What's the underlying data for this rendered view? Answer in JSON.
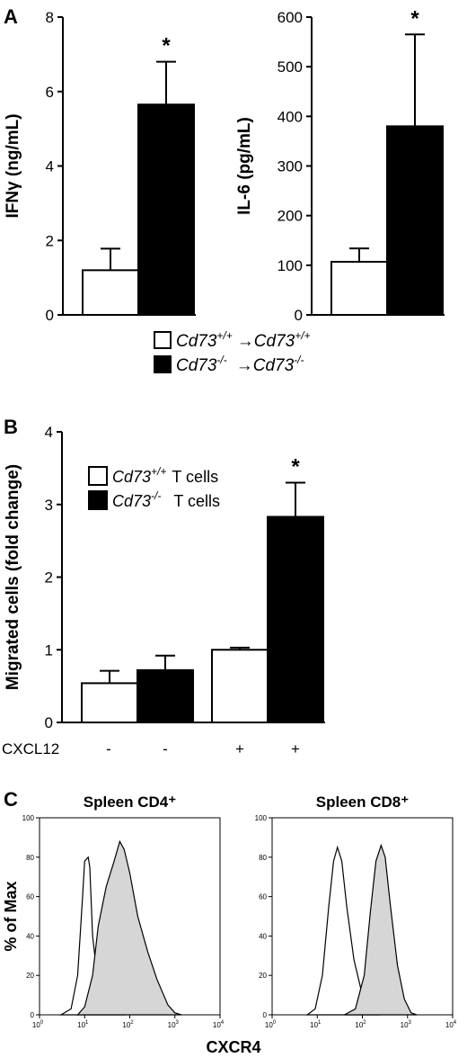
{
  "panels": {
    "A": "A",
    "B": "B",
    "C": "C"
  },
  "legend_a": {
    "entries": [
      {
        "main1": "Cd73",
        "sup1": "+/+",
        "arrow": "→",
        "main2": "Cd73",
        "sup2": "+/+",
        "fill": "#ffffff"
      },
      {
        "main1": "Cd73",
        "sup1": "-/-",
        "arrow": "→",
        "main2": "Cd73",
        "sup2": "-/-",
        "fill": "#000000"
      }
    ]
  },
  "legend_b": {
    "entries": [
      {
        "main": "Cd73",
        "sup": "+/+",
        "suffix": "T cells",
        "fill": "#ffffff"
      },
      {
        "main": "Cd73",
        "sup": "-/-",
        "suffix": "T cells",
        "fill": "#000000"
      }
    ]
  },
  "cxcl12": {
    "label": "CXCL12",
    "values": [
      "-",
      "-",
      "+",
      "+"
    ]
  },
  "chart_data": [
    {
      "type": "bar",
      "ylabel": "IFNγ (ng/mL)",
      "ylim": [
        0,
        8
      ],
      "yticks": [
        "0",
        "2",
        "4",
        "6",
        "8"
      ],
      "bars": [
        {
          "value": 1.2,
          "error": 0.58,
          "fill": "#ffffff"
        },
        {
          "value": 5.65,
          "error": 1.15,
          "fill": "#000000"
        }
      ],
      "annotation": "*"
    },
    {
      "type": "bar",
      "ylabel": "IL-6 (pg/mL)",
      "ylim": [
        0,
        600
      ],
      "yticks": [
        "0",
        "100",
        "200",
        "300",
        "400",
        "500",
        "600"
      ],
      "bars": [
        {
          "value": 107,
          "error": 27,
          "fill": "#ffffff"
        },
        {
          "value": 380,
          "error": 185,
          "fill": "#000000"
        }
      ],
      "annotation": "*"
    },
    {
      "type": "bar",
      "ylabel": "Migrated cells (fold change)",
      "ylim": [
        0,
        4
      ],
      "yticks": [
        "0",
        "1",
        "2",
        "3",
        "4"
      ],
      "bars": [
        {
          "value": 0.54,
          "error": 0.17,
          "fill": "#ffffff"
        },
        {
          "value": 0.72,
          "error": 0.2,
          "fill": "#000000"
        },
        {
          "value": 1.0,
          "error": 0.03,
          "fill": "#ffffff"
        },
        {
          "value": 2.83,
          "error": 0.47,
          "fill": "#000000"
        }
      ],
      "annotation": "*"
    },
    {
      "type": "area",
      "title": "Spleen CD4⁺",
      "ylabel": "% of Max",
      "xlabel": "CXCR4",
      "x_scale": "log",
      "xlim": [
        1,
        10000
      ],
      "ylim": [
        0,
        100
      ],
      "yticks": [
        "0",
        "20",
        "40",
        "60",
        "80",
        "100"
      ],
      "xticks": [
        {
          "base": "10",
          "exp": "0"
        },
        {
          "base": "10",
          "exp": "1"
        },
        {
          "base": "10",
          "exp": "2"
        },
        {
          "base": "10",
          "exp": "3"
        },
        {
          "base": "10",
          "exp": "4"
        }
      ],
      "series": [
        {
          "fill": "none",
          "points": [
            [
              3,
              0
            ],
            [
              5,
              3
            ],
            [
              7,
              20
            ],
            [
              9,
              60
            ],
            [
              10,
              78
            ],
            [
              12,
              80
            ],
            [
              13,
              75
            ],
            [
              15,
              40
            ],
            [
              20,
              15
            ],
            [
              28,
              5
            ],
            [
              40,
              1
            ],
            [
              80,
              0
            ]
          ]
        },
        {
          "fill": "#d6d6d6",
          "points": [
            [
              7,
              0
            ],
            [
              10,
              4
            ],
            [
              15,
              20
            ],
            [
              20,
              45
            ],
            [
              30,
              65
            ],
            [
              45,
              78
            ],
            [
              60,
              88
            ],
            [
              75,
              84
            ],
            [
              100,
              72
            ],
            [
              150,
              50
            ],
            [
              250,
              32
            ],
            [
              400,
              18
            ],
            [
              700,
              5
            ],
            [
              1000,
              1
            ],
            [
              1400,
              0
            ]
          ]
        }
      ]
    },
    {
      "type": "area",
      "title": "Spleen CD8⁺",
      "x_scale": "log",
      "xlim": [
        1,
        10000
      ],
      "ylim": [
        0,
        100
      ],
      "yticks": [
        "0",
        "20",
        "40",
        "60",
        "80",
        "100"
      ],
      "xticks": [
        {
          "base": "10",
          "exp": "0"
        },
        {
          "base": "10",
          "exp": "1"
        },
        {
          "base": "10",
          "exp": "2"
        },
        {
          "base": "10",
          "exp": "3"
        },
        {
          "base": "10",
          "exp": "4"
        }
      ],
      "series": [
        {
          "fill": "none",
          "points": [
            [
              6,
              0
            ],
            [
              9,
              3
            ],
            [
              13,
              20
            ],
            [
              18,
              55
            ],
            [
              23,
              78
            ],
            [
              28,
              85
            ],
            [
              35,
              78
            ],
            [
              45,
              55
            ],
            [
              65,
              28
            ],
            [
              100,
              10
            ],
            [
              150,
              3
            ],
            [
              230,
              0
            ]
          ]
        },
        {
          "fill": "#d6d6d6",
          "points": [
            [
              40,
              0
            ],
            [
              70,
              3
            ],
            [
              110,
              20
            ],
            [
              150,
              52
            ],
            [
              200,
              78
            ],
            [
              260,
              86
            ],
            [
              320,
              80
            ],
            [
              420,
              55
            ],
            [
              600,
              25
            ],
            [
              850,
              8
            ],
            [
              1200,
              1
            ],
            [
              1600,
              0
            ]
          ]
        }
      ]
    }
  ]
}
